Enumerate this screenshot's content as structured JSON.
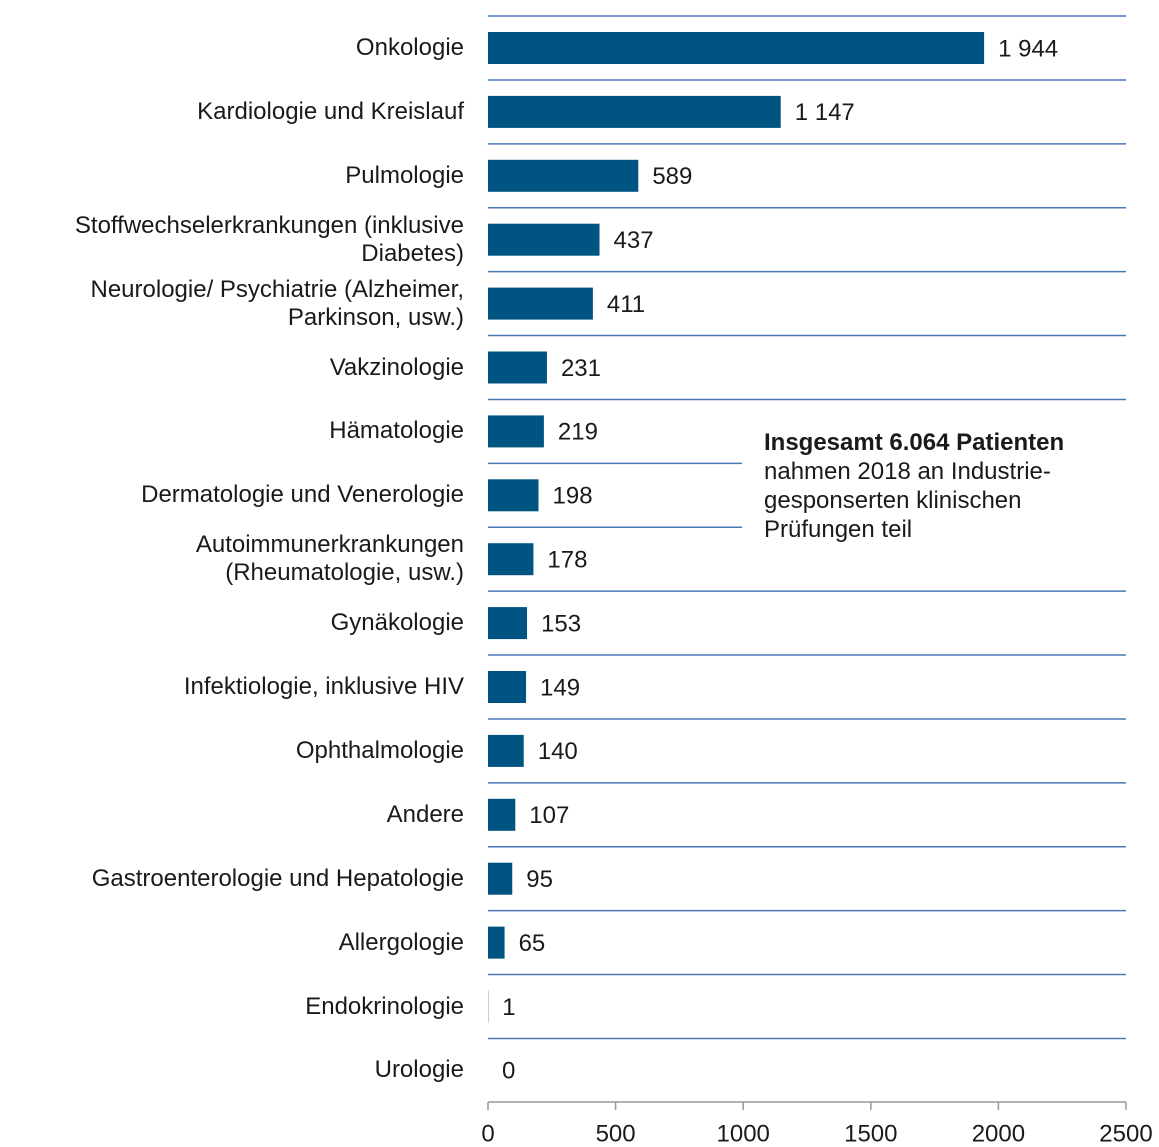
{
  "chart_data": {
    "type": "bar",
    "orientation": "horizontal",
    "categories": [
      "Onkologie",
      "Kardiologie und Kreislauf",
      "Pulmologie",
      "Stoffwechselerkrankungen (inklusive\nDiabetes)",
      "Neurologie/ Psychiatrie (Alzheimer,\nParkinson, usw.)",
      "Vakzinologie",
      "Hämatologie",
      "Dermatologie und Venerologie",
      "Autoimmunerkrankungen\n(Rheumatologie, usw.)",
      "Gynäkologie",
      "Infektiologie, inklusive HIV",
      "Ophthalmologie",
      "Andere",
      "Gastroenterologie und Hepatologie",
      "Allergologie",
      "Endokrinologie",
      "Urologie"
    ],
    "values": [
      1944,
      1147,
      589,
      437,
      411,
      231,
      219,
      198,
      178,
      153,
      149,
      140,
      107,
      95,
      65,
      1,
      0
    ],
    "value_labels": [
      "1 944",
      "1 147",
      "589",
      "437",
      "411",
      "231",
      "219",
      "198",
      "178",
      "153",
      "149",
      "140",
      "107",
      "95",
      "65",
      "1",
      "0"
    ],
    "color": "#005482",
    "xlim": [
      0,
      2500
    ],
    "xticks": [
      0,
      500,
      1000,
      1500,
      2000,
      2500
    ],
    "annotation": {
      "title": "Insgesamt 6.064 Patienten",
      "text": "nahmen 2018 an Industrie-\ngesponserten klinischen\nPrüfungen teil"
    }
  }
}
